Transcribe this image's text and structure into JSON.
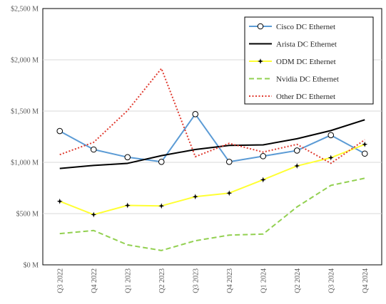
{
  "chart_data": {
    "type": "line",
    "title": "",
    "xlabel": "",
    "ylabel": "",
    "categories": [
      "Q3 2022",
      "Q4 2022",
      "Q1 2023",
      "Q2 2023",
      "Q3 2023",
      "Q4 2023",
      "Q1 2024",
      "Q2 2024",
      "Q3 2024",
      "Q4 2024"
    ],
    "ylim": [
      0,
      2500
    ],
    "yticks": [
      0,
      500,
      1000,
      1500,
      2000,
      2500
    ],
    "ytick_labels": [
      "$0 M",
      "$500 M",
      "$1,000 M",
      "$1,500 M",
      "$2,000 M",
      "$2,500 M"
    ],
    "grid": "horizontal",
    "legend_position": "top-right",
    "series": [
      {
        "name": "Cisco DC Ethernet",
        "color": "#5B9BD5",
        "style": "solid",
        "marker": "circle-open",
        "values": [
          1305,
          1125,
          1050,
          1005,
          1470,
          1005,
          1060,
          1115,
          1265,
          1085
        ]
      },
      {
        "name": "Arista DC Ethernet",
        "color": "#000000",
        "style": "solid",
        "marker": "none",
        "values": [
          940,
          970,
          990,
          1065,
          1125,
          1165,
          1170,
          1230,
          1310,
          1415
        ]
      },
      {
        "name": "ODM DC Ethernet",
        "color": "#FFFF33",
        "style": "solid",
        "marker": "star",
        "values": [
          620,
          490,
          580,
          575,
          665,
          700,
          830,
          965,
          1045,
          1175
        ]
      },
      {
        "name": "Nvidia DC Ethernet",
        "color": "#92D050",
        "style": "dashed",
        "marker": "none",
        "values": [
          305,
          335,
          195,
          140,
          235,
          290,
          300,
          565,
          775,
          845
        ]
      },
      {
        "name": "Other DC Ethernet",
        "color": "#E03C31",
        "style": "dotted",
        "marker": "none",
        "values": [
          1075,
          1195,
          1505,
          1915,
          1055,
          1185,
          1100,
          1175,
          990,
          1220
        ]
      }
    ]
  }
}
